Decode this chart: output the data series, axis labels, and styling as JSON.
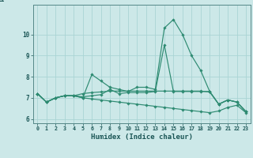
{
  "xlabel": "Humidex (Indice chaleur)",
  "x": [
    0,
    1,
    2,
    3,
    4,
    5,
    6,
    7,
    8,
    9,
    10,
    11,
    12,
    13,
    14,
    15,
    16,
    17,
    18,
    19,
    20,
    21,
    22,
    23
  ],
  "lines": [
    [
      7.2,
      6.8,
      7.0,
      7.1,
      7.1,
      7.0,
      8.1,
      7.8,
      7.5,
      7.4,
      7.3,
      7.5,
      7.5,
      7.4,
      10.3,
      10.7,
      10.0,
      9.0,
      8.3,
      7.3,
      6.7,
      6.9,
      6.8,
      6.35
    ],
    [
      7.2,
      6.8,
      7.0,
      7.1,
      7.1,
      7.05,
      7.1,
      7.15,
      7.4,
      7.2,
      7.25,
      7.25,
      7.25,
      7.3,
      9.5,
      7.3,
      7.3,
      7.3,
      7.3,
      7.3,
      6.7,
      6.9,
      6.8,
      6.35
    ],
    [
      7.2,
      6.8,
      7.0,
      7.1,
      7.1,
      7.2,
      7.25,
      7.28,
      7.32,
      7.32,
      7.32,
      7.32,
      7.32,
      7.32,
      7.32,
      7.32,
      7.32,
      7.32,
      7.32,
      7.28,
      6.7,
      6.9,
      6.8,
      6.35
    ],
    [
      7.2,
      6.8,
      7.0,
      7.1,
      7.1,
      7.0,
      6.95,
      6.9,
      6.85,
      6.8,
      6.75,
      6.7,
      6.65,
      6.6,
      6.55,
      6.5,
      6.45,
      6.4,
      6.35,
      6.3,
      6.38,
      6.55,
      6.65,
      6.3
    ]
  ],
  "line_color": "#2e8b72",
  "bg_color": "#cce8e8",
  "grid_color": "#aad4d4",
  "ylim": [
    5.8,
    11.4
  ],
  "yticks": [
    6,
    7,
    8,
    9,
    10
  ],
  "ytick_labels": [
    "6",
    "7",
    "8",
    "9",
    "10"
  ],
  "marker": "D",
  "marker_size": 1.8,
  "linewidth": 0.85
}
